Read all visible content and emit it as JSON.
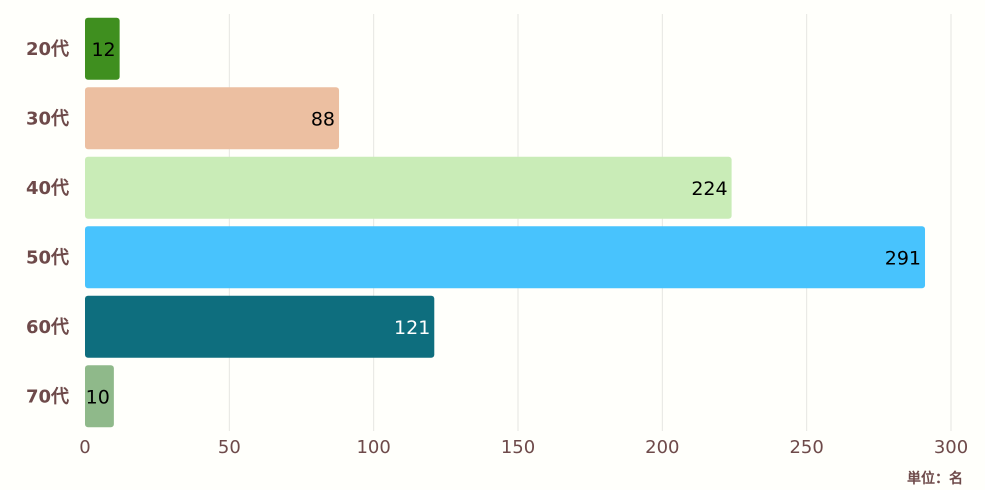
{
  "chart_data": {
    "type": "bar",
    "orientation": "horizontal",
    "categories": [
      "20代",
      "30代",
      "40代",
      "50代",
      "60代",
      "70代"
    ],
    "values": [
      12,
      88,
      224,
      291,
      121,
      10
    ],
    "colors": [
      "#3f8f1f",
      "#ecbfa1",
      "#c9ecb7",
      "#48c3fd",
      "#0e6e7e",
      "#8fb98a"
    ],
    "label_colors": [
      "#000000",
      "#000000",
      "#000000",
      "#000000",
      "#ffffff",
      "#000000"
    ],
    "xlim": [
      0,
      300
    ],
    "xticks": [
      0,
      50,
      100,
      150,
      200,
      250,
      300
    ],
    "grid": true,
    "unit_label": "単位：名",
    "title": "",
    "xlabel": "",
    "ylabel": ""
  }
}
